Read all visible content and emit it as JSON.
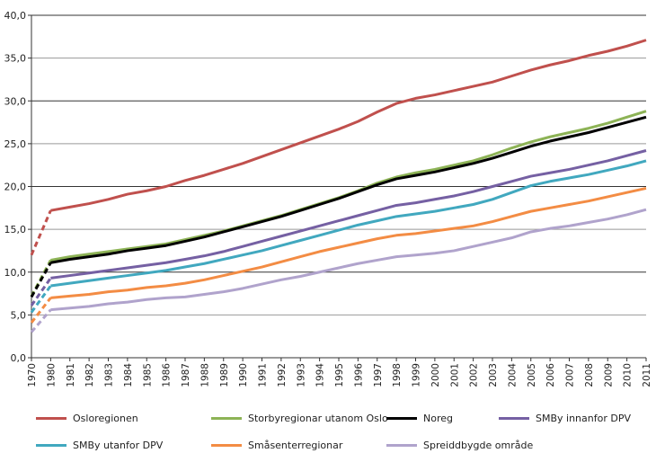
{
  "chart_data": {
    "type": "line",
    "categories": [
      "1970",
      "1980",
      "1981",
      "1982",
      "1983",
      "1984",
      "1985",
      "1986",
      "1987",
      "1988",
      "1989",
      "1990",
      "1991",
      "1992",
      "1993",
      "1994",
      "1995",
      "1996",
      "1997",
      "1998",
      "1999",
      "2000",
      "2001",
      "2002",
      "2003",
      "2004",
      "2005",
      "2006",
      "2007",
      "2008",
      "2009",
      "2010",
      "2011"
    ],
    "ylim": [
      0,
      40
    ],
    "yticks": [
      "0,0",
      "5,0",
      "10,0",
      "15,0",
      "20,0",
      "25,0",
      "30,0",
      "35,0",
      "40,0"
    ],
    "grid": true,
    "legend_position": "bottom",
    "dashed_segment": [
      "1970",
      "1980"
    ],
    "series": [
      {
        "name": "Osloregionen",
        "color": "#c0504d",
        "values": [
          12.0,
          17.2,
          17.6,
          18.0,
          18.5,
          19.1,
          19.5,
          20.0,
          20.7,
          21.3,
          22.0,
          22.7,
          23.5,
          24.3,
          25.1,
          25.9,
          26.7,
          27.6,
          28.7,
          29.7,
          30.3,
          30.7,
          31.2,
          31.7,
          32.2,
          32.9,
          33.6,
          34.2,
          34.7,
          35.3,
          35.8,
          36.4,
          37.1
        ]
      },
      {
        "name": "Storbyregionar utanom Oslo",
        "color": "#8db356",
        "values": [
          7.2,
          11.4,
          11.8,
          12.1,
          12.4,
          12.7,
          13.0,
          13.3,
          13.8,
          14.3,
          14.8,
          15.4,
          16.0,
          16.6,
          17.3,
          18.0,
          18.7,
          19.5,
          20.4,
          21.1,
          21.6,
          22.0,
          22.5,
          23.0,
          23.7,
          24.5,
          25.2,
          25.8,
          26.3,
          26.8,
          27.4,
          28.1,
          28.8
        ]
      },
      {
        "name": "Noreg",
        "color": "#000000",
        "values": [
          7.1,
          11.1,
          11.5,
          11.8,
          12.1,
          12.5,
          12.8,
          13.1,
          13.6,
          14.1,
          14.7,
          15.3,
          15.9,
          16.5,
          17.2,
          17.9,
          18.6,
          19.4,
          20.2,
          20.9,
          21.3,
          21.7,
          22.2,
          22.7,
          23.3,
          24.0,
          24.7,
          25.3,
          25.8,
          26.3,
          26.9,
          27.5,
          28.1
        ]
      },
      {
        "name": "SMBy innanfor DPV",
        "color": "#7560a3",
        "values": [
          6.1,
          9.3,
          9.6,
          9.9,
          10.2,
          10.5,
          10.8,
          11.1,
          11.5,
          11.9,
          12.4,
          13.0,
          13.6,
          14.2,
          14.8,
          15.4,
          16.0,
          16.6,
          17.2,
          17.8,
          18.1,
          18.5,
          18.9,
          19.4,
          20.0,
          20.6,
          21.2,
          21.6,
          22.0,
          22.5,
          23.0,
          23.6,
          24.2
        ]
      },
      {
        "name": "SMBy utanfor DPV",
        "color": "#41a8bf",
        "values": [
          5.3,
          8.4,
          8.7,
          9.0,
          9.3,
          9.6,
          9.9,
          10.2,
          10.6,
          11.0,
          11.5,
          12.0,
          12.5,
          13.1,
          13.7,
          14.3,
          14.9,
          15.5,
          16.0,
          16.5,
          16.8,
          17.1,
          17.5,
          17.9,
          18.5,
          19.3,
          20.1,
          20.6,
          21.0,
          21.4,
          21.9,
          22.4,
          23.0
        ]
      },
      {
        "name": "Småsenterregionar",
        "color": "#f38c44",
        "values": [
          4.1,
          7.0,
          7.2,
          7.4,
          7.7,
          7.9,
          8.2,
          8.4,
          8.7,
          9.1,
          9.6,
          10.1,
          10.6,
          11.2,
          11.8,
          12.4,
          12.9,
          13.4,
          13.9,
          14.3,
          14.5,
          14.8,
          15.1,
          15.4,
          15.9,
          16.5,
          17.1,
          17.5,
          17.9,
          18.3,
          18.8,
          19.3,
          19.8
        ]
      },
      {
        "name": "Spreiddbygde område",
        "color": "#b0a3cc",
        "values": [
          3.0,
          5.6,
          5.8,
          6.0,
          6.3,
          6.5,
          6.8,
          7.0,
          7.1,
          7.4,
          7.7,
          8.1,
          8.6,
          9.1,
          9.5,
          10.0,
          10.5,
          11.0,
          11.4,
          11.8,
          12.0,
          12.2,
          12.5,
          13.0,
          13.5,
          14.0,
          14.7,
          15.1,
          15.4,
          15.8,
          16.2,
          16.7,
          17.3
        ]
      }
    ]
  }
}
